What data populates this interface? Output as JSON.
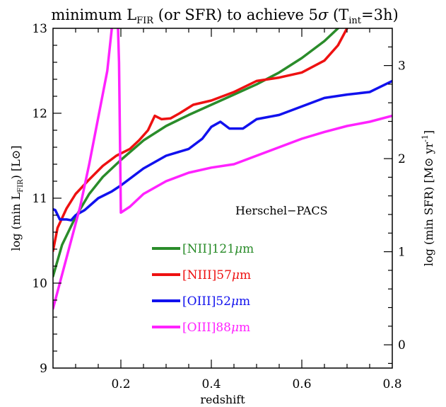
{
  "chart_data": {
    "type": "line",
    "title": "minimum L_FIR (or SFR) to achieve 5σ (T_int=3h)",
    "title_parts": {
      "pre": "minimum L",
      "sub1": "FIR",
      "mid": " (or SFR) to achieve 5",
      "sigma": "σ",
      "paren_open": " (T",
      "sub2": "int",
      "post": "=3h)"
    },
    "xlabel": "redshift",
    "ylabel_left": "log (min L_FIR) [L⊙]",
    "ylabel_left_parts": {
      "pre": "log (min L",
      "sub": "FIR",
      "post": ") [L",
      "sun": "⊙",
      "end": "]"
    },
    "ylabel_right": "log (min SFR) [M⊙ yr^-1]",
    "ylabel_right_parts": {
      "pre": "log (min SFR) [M",
      "sun": "⊙",
      "mid": " yr",
      "sup": "-1",
      "end": "]"
    },
    "xlim": [
      0.05,
      0.8
    ],
    "ylim": [
      9,
      13
    ],
    "ylim_right": [
      -0.25,
      3.4
    ],
    "x_ticks": [
      "0.2",
      "0.4",
      "0.6",
      "0.8"
    ],
    "y_ticks_left": [
      "9",
      "10",
      "11",
      "12",
      "13"
    ],
    "y_ticks_right": [
      "0",
      "1",
      "2",
      "3"
    ],
    "annotation": "Herschel−PACS",
    "legend_position": "bottom-center",
    "series": [
      {
        "name": "[NII]121μm",
        "label_parts": {
          "pre": "[NII]121",
          "mu": "μ",
          "post": "m"
        },
        "color": "#2a8c2a",
        "points": [
          [
            0.05,
            10.08
          ],
          [
            0.07,
            10.45
          ],
          [
            0.1,
            10.78
          ],
          [
            0.13,
            11.05
          ],
          [
            0.16,
            11.25
          ],
          [
            0.2,
            11.45
          ],
          [
            0.25,
            11.68
          ],
          [
            0.3,
            11.85
          ],
          [
            0.35,
            11.98
          ],
          [
            0.4,
            12.1
          ],
          [
            0.45,
            12.22
          ],
          [
            0.5,
            12.34
          ],
          [
            0.55,
            12.48
          ],
          [
            0.6,
            12.65
          ],
          [
            0.65,
            12.85
          ],
          [
            0.7,
            13.1
          ]
        ]
      },
      {
        "name": "[NIII]57μm",
        "label_parts": {
          "pre": "[NIII]57",
          "mu": "μ",
          "post": "m"
        },
        "color": "#ee1111",
        "points": [
          [
            0.05,
            10.38
          ],
          [
            0.06,
            10.65
          ],
          [
            0.08,
            10.88
          ],
          [
            0.1,
            11.05
          ],
          [
            0.13,
            11.22
          ],
          [
            0.16,
            11.38
          ],
          [
            0.19,
            11.5
          ],
          [
            0.22,
            11.58
          ],
          [
            0.24,
            11.68
          ],
          [
            0.26,
            11.8
          ],
          [
            0.275,
            11.97
          ],
          [
            0.29,
            11.93
          ],
          [
            0.31,
            11.94
          ],
          [
            0.33,
            12.0
          ],
          [
            0.36,
            12.1
          ],
          [
            0.4,
            12.15
          ],
          [
            0.45,
            12.25
          ],
          [
            0.5,
            12.38
          ],
          [
            0.55,
            12.42
          ],
          [
            0.6,
            12.48
          ],
          [
            0.65,
            12.62
          ],
          [
            0.68,
            12.8
          ],
          [
            0.7,
            13.0
          ]
        ]
      },
      {
        "name": "[OIII]52μm",
        "label_parts": {
          "pre": "[OIII]52",
          "mu": "μ",
          "post": "m"
        },
        "color": "#1111ee",
        "points": [
          [
            0.05,
            10.87
          ],
          [
            0.055,
            10.86
          ],
          [
            0.065,
            10.75
          ],
          [
            0.08,
            10.75
          ],
          [
            0.09,
            10.74
          ],
          [
            0.1,
            10.8
          ],
          [
            0.12,
            10.86
          ],
          [
            0.15,
            11.0
          ],
          [
            0.18,
            11.08
          ],
          [
            0.2,
            11.15
          ],
          [
            0.25,
            11.35
          ],
          [
            0.3,
            11.5
          ],
          [
            0.35,
            11.58
          ],
          [
            0.38,
            11.7
          ],
          [
            0.4,
            11.84
          ],
          [
            0.42,
            11.9
          ],
          [
            0.44,
            11.82
          ],
          [
            0.47,
            11.82
          ],
          [
            0.5,
            11.93
          ],
          [
            0.55,
            11.98
          ],
          [
            0.6,
            12.08
          ],
          [
            0.65,
            12.18
          ],
          [
            0.7,
            12.22
          ],
          [
            0.75,
            12.25
          ],
          [
            0.8,
            12.38
          ]
        ]
      },
      {
        "name": "[OIII]88μm",
        "label_parts": {
          "pre": "[OIII]88",
          "mu": "μ",
          "post": "m"
        },
        "color": "#ff22ff",
        "points": [
          [
            0.05,
            9.7
          ],
          [
            0.07,
            10.1
          ],
          [
            0.09,
            10.5
          ],
          [
            0.11,
            10.9
          ],
          [
            0.13,
            11.4
          ],
          [
            0.15,
            11.95
          ],
          [
            0.17,
            12.5
          ],
          [
            0.18,
            13.0
          ],
          [
            0.185,
            13.3
          ],
          [
            0.192,
            13.3
          ],
          [
            0.196,
            12.6
          ],
          [
            0.2,
            10.83
          ],
          [
            0.22,
            10.9
          ],
          [
            0.25,
            11.05
          ],
          [
            0.3,
            11.2
          ],
          [
            0.35,
            11.3
          ],
          [
            0.4,
            11.36
          ],
          [
            0.45,
            11.4
          ],
          [
            0.5,
            11.5
          ],
          [
            0.55,
            11.6
          ],
          [
            0.6,
            11.7
          ],
          [
            0.65,
            11.78
          ],
          [
            0.7,
            11.85
          ],
          [
            0.75,
            11.9
          ],
          [
            0.8,
            11.97
          ]
        ]
      }
    ]
  }
}
